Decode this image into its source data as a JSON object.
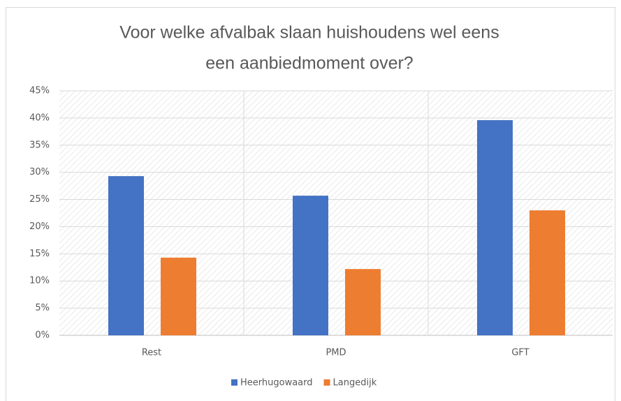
{
  "chart_data": {
    "type": "bar",
    "title": [
      "Voor welke afvalbak slaan huishoudens wel eens",
      "een aanbiedmoment over?"
    ],
    "categories": [
      "Rest",
      "PMD",
      "GFT"
    ],
    "series": [
      {
        "name": "Heerhugowaard",
        "color": "#4472c4",
        "values": [
          29.3,
          25.7,
          39.6
        ]
      },
      {
        "name": "Langedijk",
        "color": "#ed7d31",
        "values": [
          14.3,
          12.2,
          23.0
        ]
      }
    ],
    "ylim": [
      0,
      45
    ],
    "yticks": [
      {
        "value": 0,
        "label": "0%"
      },
      {
        "value": 5,
        "label": "5%"
      },
      {
        "value": 10,
        "label": "10%"
      },
      {
        "value": 15,
        "label": "15%"
      },
      {
        "value": 20,
        "label": "20%"
      },
      {
        "value": 25,
        "label": "25%"
      },
      {
        "value": 30,
        "label": "30%"
      },
      {
        "value": 35,
        "label": "35%"
      },
      {
        "value": 40,
        "label": "40%"
      },
      {
        "value": 45,
        "label": "45%"
      }
    ],
    "grid": true,
    "legend": "bottom"
  }
}
